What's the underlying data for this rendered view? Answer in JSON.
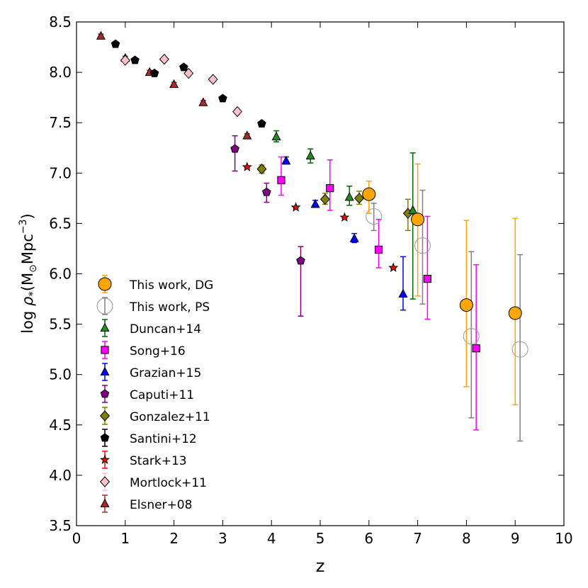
{
  "chart_data": {
    "type": "scatter",
    "title": "",
    "xlabel": "z",
    "ylabel_parts": {
      "prefix": "log ",
      "rho": "ρ",
      "rho_sub": "*",
      "open_paren": "(M",
      "sun": "⊙",
      "unit": "Mpc",
      "exp": "−3",
      "close_paren": ")"
    },
    "xlim": [
      0,
      10
    ],
    "ylim": [
      3.5,
      8.5
    ],
    "xticks": [
      0,
      1,
      2,
      3,
      4,
      5,
      6,
      7,
      8,
      9,
      10
    ],
    "yticks": [
      3.5,
      4.0,
      4.5,
      5.0,
      5.5,
      6.0,
      6.5,
      7.0,
      7.5,
      8.0,
      8.5
    ],
    "xtick_labels": [
      "0",
      "1",
      "2",
      "3",
      "4",
      "5",
      "6",
      "7",
      "8",
      "9",
      "10"
    ],
    "ytick_labels": [
      "3.5",
      "4.0",
      "4.5",
      "5.0",
      "5.5",
      "6.0",
      "6.5",
      "7.0",
      "7.5",
      "8.0",
      "8.5"
    ],
    "grid": false,
    "legend_position": "bottom-left",
    "series": [
      {
        "name": "This work, DG",
        "marker": "circle",
        "filled": true,
        "size": 9,
        "color": "#ffa500",
        "edge": "#000000",
        "err_color": "#ffa500",
        "points": [
          {
            "x": 6.0,
            "y": 6.79,
            "lo": 6.6,
            "hi": 6.92
          },
          {
            "x": 7.0,
            "y": 6.54,
            "lo": 5.78,
            "hi": 7.09
          },
          {
            "x": 8.0,
            "y": 5.69,
            "lo": 4.88,
            "hi": 6.53
          },
          {
            "x": 9.0,
            "y": 5.61,
            "lo": 4.7,
            "hi": 6.55
          }
        ]
      },
      {
        "name": "This work, PS",
        "marker": "circle",
        "filled": false,
        "size": 11,
        "color": "none",
        "edge": "#999999",
        "err_color": "#808080",
        "points": [
          {
            "x": 6.1,
            "y": 6.57,
            "lo": 6.43,
            "hi": 6.7
          },
          {
            "x": 7.1,
            "y": 6.28,
            "lo": 5.7,
            "hi": 6.83
          },
          {
            "x": 8.1,
            "y": 5.38,
            "lo": 4.57,
            "hi": 6.22
          },
          {
            "x": 9.1,
            "y": 5.25,
            "lo": 4.34,
            "hi": 6.19
          }
        ]
      },
      {
        "name": "Duncan+14",
        "marker": "triangle",
        "filled": true,
        "size": 6,
        "color": "#228b22",
        "edge": "#000000",
        "err_color": "#006400",
        "points": [
          {
            "x": 4.1,
            "y": 7.36,
            "lo": 7.31,
            "hi": 7.42
          },
          {
            "x": 4.8,
            "y": 7.17,
            "lo": 7.1,
            "hi": 7.24
          },
          {
            "x": 5.6,
            "y": 6.76,
            "lo": 6.68,
            "hi": 6.87
          },
          {
            "x": 6.9,
            "y": 6.63,
            "lo": 5.75,
            "hi": 7.2
          }
        ]
      },
      {
        "name": "Song+16",
        "marker": "square",
        "filled": true,
        "size": 6,
        "color": "#ff00ff",
        "edge": "#000000",
        "err_color": "#ff00ff",
        "points": [
          {
            "x": 4.2,
            "y": 6.93,
            "lo": 6.78,
            "hi": 7.16
          },
          {
            "x": 5.2,
            "y": 6.85,
            "lo": 6.63,
            "hi": 7.13
          },
          {
            "x": 6.2,
            "y": 6.24,
            "lo": 6.06,
            "hi": 6.54
          },
          {
            "x": 7.2,
            "y": 5.95,
            "lo": 5.55,
            "hi": 6.57
          },
          {
            "x": 8.2,
            "y": 5.26,
            "lo": 4.45,
            "hi": 6.09
          }
        ]
      },
      {
        "name": "Grazian+15",
        "marker": "triangle",
        "filled": true,
        "size": 6,
        "color": "#0000ff",
        "edge": "#000000",
        "err_color": "#0000ff",
        "points": [
          {
            "x": 4.3,
            "y": 7.12,
            "lo": 7.09,
            "hi": 7.16
          },
          {
            "x": 4.9,
            "y": 6.69,
            "lo": 6.66,
            "hi": 6.73
          },
          {
            "x": 5.7,
            "y": 6.35,
            "lo": 6.31,
            "hi": 6.4
          },
          {
            "x": 6.7,
            "y": 5.8,
            "lo": 5.64,
            "hi": 6.17
          }
        ]
      },
      {
        "name": "Caputi+11",
        "marker": "pentagon",
        "filled": true,
        "size": 6,
        "color": "#800080",
        "edge": "#000000",
        "err_color": "#800080",
        "points": [
          {
            "x": 3.25,
            "y": 7.24,
            "lo": 7.02,
            "hi": 7.37
          },
          {
            "x": 3.9,
            "y": 6.81,
            "lo": 6.71,
            "hi": 6.9
          },
          {
            "x": 4.6,
            "y": 6.13,
            "lo": 5.58,
            "hi": 6.27
          }
        ]
      },
      {
        "name": "Gonzalez+11",
        "marker": "diamond",
        "filled": true,
        "size": 7,
        "color": "#808000",
        "edge": "#000000",
        "err_color": "#808000",
        "points": [
          {
            "x": 3.8,
            "y": 7.04,
            "lo": 7.0,
            "hi": 7.08
          },
          {
            "x": 5.1,
            "y": 6.74,
            "lo": 6.69,
            "hi": 6.8
          },
          {
            "x": 5.8,
            "y": 6.75,
            "lo": 6.69,
            "hi": 6.82
          },
          {
            "x": 6.8,
            "y": 6.6,
            "lo": 6.43,
            "hi": 6.74
          }
        ]
      },
      {
        "name": "Santini+12",
        "marker": "pentagon",
        "filled": true,
        "size": 6,
        "color": "#000000",
        "edge": "#000000",
        "err_color": "#000000",
        "points": [
          {
            "x": 0.8,
            "y": 8.28,
            "lo": 8.26,
            "hi": 8.3
          },
          {
            "x": 1.2,
            "y": 8.12,
            "lo": 8.1,
            "hi": 8.14
          },
          {
            "x": 1.6,
            "y": 7.99,
            "lo": 7.97,
            "hi": 8.01
          },
          {
            "x": 2.2,
            "y": 8.05,
            "lo": 8.03,
            "hi": 8.07
          },
          {
            "x": 3.0,
            "y": 7.74,
            "lo": 7.72,
            "hi": 7.76
          },
          {
            "x": 3.8,
            "y": 7.49,
            "lo": 7.47,
            "hi": 7.51
          }
        ]
      },
      {
        "name": "Stark+13",
        "marker": "star",
        "filled": true,
        "size": 6,
        "color": "#ff0000",
        "edge": "#000000",
        "err_color": "#ff0000",
        "points": [
          {
            "x": 3.5,
            "y": 7.06,
            "lo": 7.05,
            "hi": 7.07
          },
          {
            "x": 4.5,
            "y": 6.66,
            "lo": 6.65,
            "hi": 6.67
          },
          {
            "x": 5.5,
            "y": 6.56,
            "lo": 6.55,
            "hi": 6.57
          },
          {
            "x": 6.5,
            "y": 6.06,
            "lo": 6.05,
            "hi": 6.07
          }
        ]
      },
      {
        "name": "Mortlock+11",
        "marker": "diamond",
        "filled": true,
        "size": 7,
        "color": "#ffc0cb",
        "edge": "#000000",
        "err_color": "#ffc0cb",
        "points": [
          {
            "x": 1.0,
            "y": 8.12,
            "lo": 8.1,
            "hi": 8.14
          },
          {
            "x": 1.8,
            "y": 8.13,
            "lo": 8.11,
            "hi": 8.15
          },
          {
            "x": 2.3,
            "y": 7.99,
            "lo": 7.97,
            "hi": 8.01
          },
          {
            "x": 2.8,
            "y": 7.93,
            "lo": 7.91,
            "hi": 7.95
          },
          {
            "x": 3.3,
            "y": 7.61,
            "lo": 7.59,
            "hi": 7.63
          }
        ]
      },
      {
        "name": "Elsner+08",
        "marker": "triangle",
        "filled": true,
        "size": 6,
        "color": "#a52a2a",
        "edge": "#000000",
        "err_color": "#a52a2a",
        "points": [
          {
            "x": 0.5,
            "y": 8.36,
            "lo": 8.34,
            "hi": 8.38
          },
          {
            "x": 1.0,
            "y": 8.14,
            "lo": 8.12,
            "hi": 8.16
          },
          {
            "x": 1.5,
            "y": 8.0,
            "lo": 7.98,
            "hi": 8.02
          },
          {
            "x": 2.0,
            "y": 7.88,
            "lo": 7.86,
            "hi": 7.9
          },
          {
            "x": 2.6,
            "y": 7.7,
            "lo": 7.68,
            "hi": 7.72
          },
          {
            "x": 3.5,
            "y": 7.37,
            "lo": 7.35,
            "hi": 7.39
          }
        ]
      }
    ]
  }
}
